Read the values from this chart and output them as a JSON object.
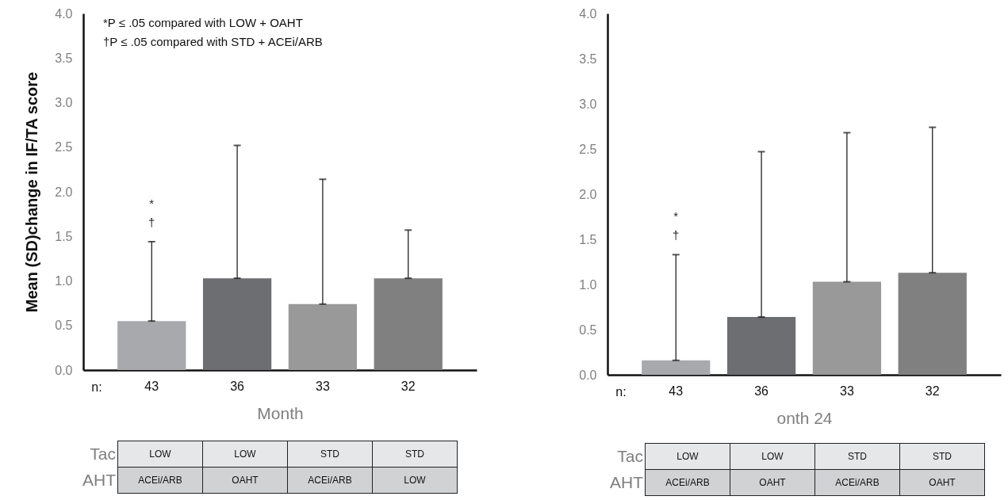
{
  "chart_data": [
    {
      "type": "bar",
      "xlabel": "Month",
      "ylabel": "Mean (SD)change in IF/TA score",
      "categories": [
        "43",
        "36",
        "33",
        "32"
      ],
      "values": [
        0.55,
        1.03,
        0.74,
        1.03
      ],
      "colors": [
        "#a7a9ac",
        "#6d6e71",
        "#999999",
        "#808080"
      ],
      "errors": [
        [
          0.55,
          1.44
        ],
        [
          1.03,
          2.52
        ],
        [
          0.74,
          2.14
        ],
        [
          1.03,
          1.57
        ]
      ],
      "ylim": [
        0,
        4
      ],
      "yticks": [
        {
          "value": 0,
          "label": "0.0"
        },
        0.5,
        {
          "value": 1,
          "label": "1.0"
        },
        1.5,
        {
          "value": 2,
          "label": "2.0"
        },
        2.5,
        {
          "value": 3,
          "label": "3.0"
        },
        3.5,
        {
          "value": 4,
          "label": "4.0"
        }
      ],
      "annotations": [
        "*",
        "†",
        "n:",
        "Tac",
        "AHT",
        "LOW",
        "LOW",
        "STD",
        "STD",
        "ACEi/ARB",
        "OAHT",
        "ACEi/ARB",
        "LOW",
        "*P ≤ .05 compared with LOW + OAHT",
        "†P ≤ .05 compared with STD + ACEi/ARB"
      ]
    },
    {
      "type": "bar",
      "xlabel": "onth 24",
      "categories": [
        "43",
        "36",
        "33",
        "32"
      ],
      "values": [
        0.16,
        0.64,
        1.03,
        1.13
      ],
      "colors": [
        "#a7a9ac",
        "#6d6e71",
        "#999999",
        "#808080"
      ],
      "errors": [
        [
          0.16,
          1.33
        ],
        [
          0.64,
          2.47
        ],
        [
          1.03,
          2.68
        ],
        [
          1.13,
          2.74
        ]
      ],
      "ylim": [
        0,
        4
      ],
      "yticks": [
        {
          "value": 0,
          "label": "0.0"
        },
        0.5,
        {
          "value": 1,
          "label": "1.0"
        },
        1.5,
        {
          "value": 2,
          "label": "2.0"
        },
        2.5,
        {
          "value": 3,
          "label": "3.0"
        },
        3.5,
        {
          "value": 4,
          "label": "4.0"
        }
      ],
      "annotations": [
        "*",
        "†",
        "n:",
        "Tac",
        "AHT",
        "LOW",
        "LOW",
        "STD",
        "STD",
        "ACEi/ARB",
        "OAHT",
        "ACEi/ARB",
        "OAHT"
      ]
    }
  ]
}
